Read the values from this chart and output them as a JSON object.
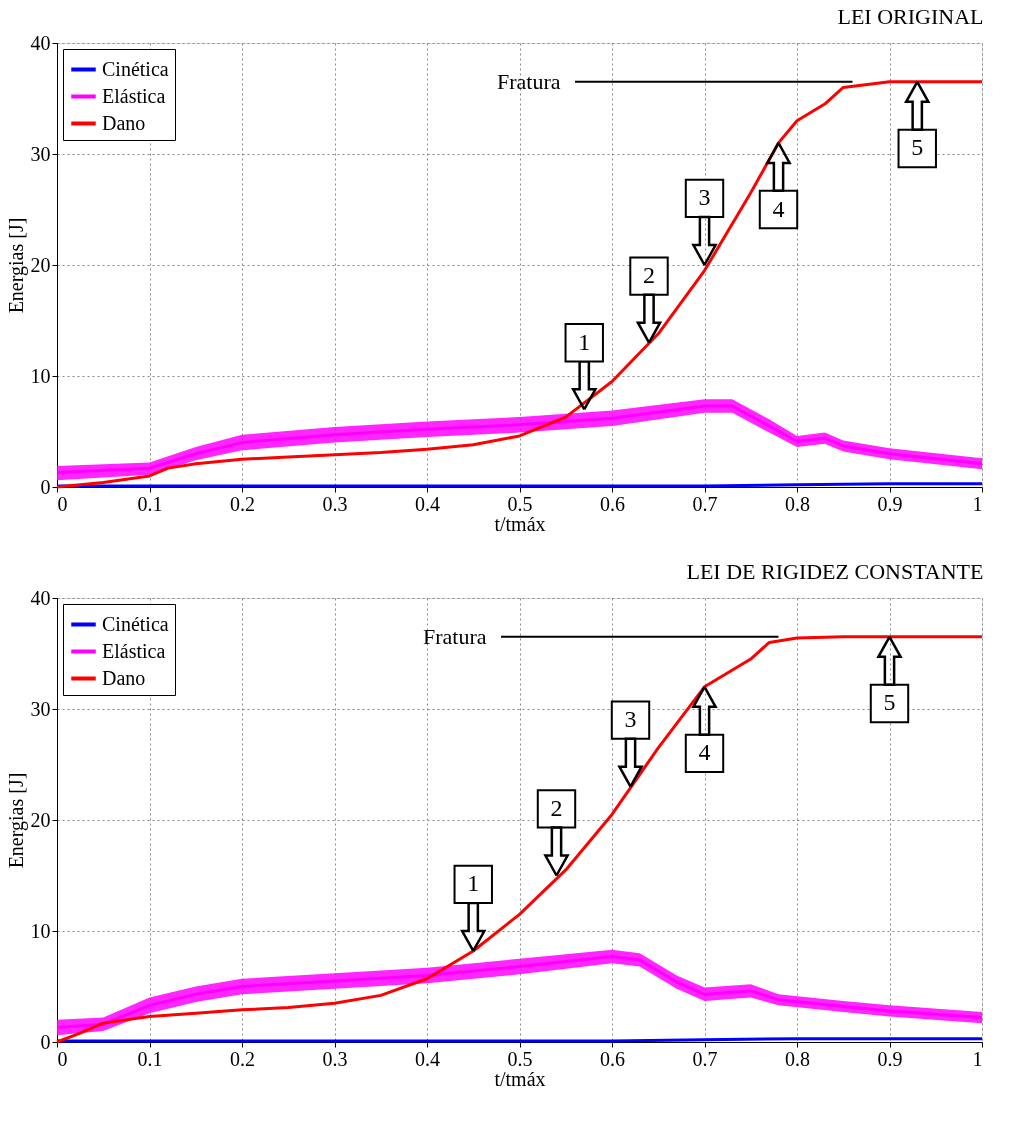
{
  "chart_data": [
    {
      "type": "line",
      "title": "LEI ORIGINAL",
      "xlabel": "t/tmáx",
      "ylabel": "Energias [J]",
      "xlim": [
        0,
        1
      ],
      "ylim": [
        0,
        40
      ],
      "xticks": [
        0,
        0.1,
        0.2,
        0.3,
        0.4,
        0.5,
        0.6,
        0.7,
        0.8,
        0.9,
        1
      ],
      "yticks": [
        0,
        10,
        20,
        30,
        40
      ],
      "grid": true,
      "legend": "top left",
      "series": [
        {
          "name": "Cinética",
          "color": "#0000ff",
          "x": [
            0,
            0.2,
            0.4,
            0.6,
            0.7,
            0.8,
            0.9,
            1
          ],
          "values": [
            0.1,
            0.1,
            0.1,
            0.1,
            0.1,
            0.2,
            0.3,
            0.3
          ]
        },
        {
          "name": "Elástica",
          "color": "#ff00ff",
          "x": [
            0,
            0.1,
            0.15,
            0.2,
            0.3,
            0.4,
            0.5,
            0.6,
            0.7,
            0.73,
            0.77,
            0.8,
            0.83,
            0.85,
            0.9,
            1
          ],
          "values": [
            1.3,
            1.7,
            3.0,
            4.0,
            4.7,
            5.2,
            5.6,
            6.2,
            7.3,
            7.3,
            5.5,
            4.1,
            4.4,
            3.7,
            3.0,
            2.1
          ],
          "lower": [
            0.6,
            1.1,
            2.4,
            3.3,
            4.0,
            4.5,
            4.9,
            5.5,
            6.7,
            6.7,
            4.9,
            3.6,
            3.9,
            3.2,
            2.5,
            1.6
          ],
          "upper": [
            1.9,
            2.2,
            3.6,
            4.7,
            5.4,
            5.9,
            6.3,
            6.9,
            7.9,
            7.9,
            6.1,
            4.6,
            4.9,
            4.2,
            3.5,
            2.6
          ]
        },
        {
          "name": "Dano",
          "color": "#ff0000",
          "x": [
            0,
            0.05,
            0.1,
            0.12,
            0.15,
            0.2,
            0.25,
            0.3,
            0.35,
            0.4,
            0.45,
            0.5,
            0.55,
            0.6,
            0.65,
            0.7,
            0.75,
            0.78,
            0.8,
            0.83,
            0.85,
            0.9,
            1
          ],
          "values": [
            0,
            0.4,
            1.0,
            1.7,
            2.1,
            2.5,
            2.7,
            2.9,
            3.1,
            3.4,
            3.8,
            4.6,
            6.3,
            9.5,
            13.8,
            19.5,
            26.5,
            31,
            33,
            34.5,
            36,
            36.5,
            36.5
          ]
        }
      ],
      "annotations": [
        {
          "text": "Fratura",
          "x": 0.86,
          "y": 36.5
        },
        {
          "text": "1",
          "x": 0.57,
          "y": 7
        },
        {
          "text": "2",
          "x": 0.64,
          "y": 13
        },
        {
          "text": "3",
          "x": 0.7,
          "y": 20
        },
        {
          "text": "4",
          "x": 0.78,
          "y": 31
        },
        {
          "text": "5",
          "x": 0.93,
          "y": 36.5
        }
      ]
    },
    {
      "type": "line",
      "title": "LEI DE RIGIDEZ CONSTANTE",
      "xlabel": "t/tmáx",
      "ylabel": "Energias [J]",
      "xlim": [
        0,
        1
      ],
      "ylim": [
        0,
        40
      ],
      "xticks": [
        0,
        0.1,
        0.2,
        0.3,
        0.4,
        0.5,
        0.6,
        0.7,
        0.8,
        0.9,
        1
      ],
      "yticks": [
        0,
        10,
        20,
        30,
        40
      ],
      "grid": true,
      "legend": "top left",
      "series": [
        {
          "name": "Cinética",
          "color": "#0000ff",
          "x": [
            0,
            0.2,
            0.4,
            0.6,
            0.7,
            0.8,
            0.9,
            1
          ],
          "values": [
            0.1,
            0.1,
            0.1,
            0.1,
            0.2,
            0.3,
            0.3,
            0.3
          ]
        },
        {
          "name": "Elástica",
          "color": "#ff00ff",
          "x": [
            0,
            0.05,
            0.1,
            0.15,
            0.2,
            0.3,
            0.4,
            0.5,
            0.6,
            0.63,
            0.67,
            0.7,
            0.75,
            0.78,
            0.85,
            0.9,
            1
          ],
          "values": [
            1.3,
            1.6,
            3.3,
            4.3,
            5.0,
            5.5,
            6.0,
            6.8,
            7.7,
            7.4,
            5.4,
            4.3,
            4.6,
            3.8,
            3.2,
            2.8,
            2.2
          ],
          "lower": [
            0.6,
            1.0,
            2.6,
            3.6,
            4.3,
            4.8,
            5.3,
            6.1,
            7.1,
            6.8,
            4.8,
            3.7,
            4.0,
            3.3,
            2.7,
            2.3,
            1.7
          ],
          "upper": [
            2.0,
            2.2,
            4.0,
            5.0,
            5.7,
            6.2,
            6.7,
            7.5,
            8.3,
            8.0,
            6.0,
            4.9,
            5.2,
            4.3,
            3.7,
            3.3,
            2.7
          ]
        },
        {
          "name": "Dano",
          "color": "#ff0000",
          "x": [
            0,
            0.025,
            0.05,
            0.1,
            0.15,
            0.2,
            0.25,
            0.3,
            0.35,
            0.4,
            0.45,
            0.5,
            0.55,
            0.6,
            0.65,
            0.7,
            0.75,
            0.77,
            0.8,
            0.85,
            1
          ],
          "values": [
            0,
            0.8,
            1.7,
            2.3,
            2.6,
            2.9,
            3.1,
            3.5,
            4.2,
            5.7,
            8.2,
            11.5,
            15.5,
            20.5,
            26.5,
            32,
            34.5,
            36,
            36.4,
            36.5,
            36.5
          ]
        }
      ],
      "annotations": [
        {
          "text": "Fratura",
          "x": 0.78,
          "y": 36.5
        },
        {
          "text": "1",
          "x": 0.45,
          "y": 8.2
        },
        {
          "text": "2",
          "x": 0.54,
          "y": 15
        },
        {
          "text": "3",
          "x": 0.62,
          "y": 23
        },
        {
          "text": "4",
          "x": 0.7,
          "y": 32
        },
        {
          "text": "5",
          "x": 0.9,
          "y": 36.5
        }
      ]
    }
  ]
}
